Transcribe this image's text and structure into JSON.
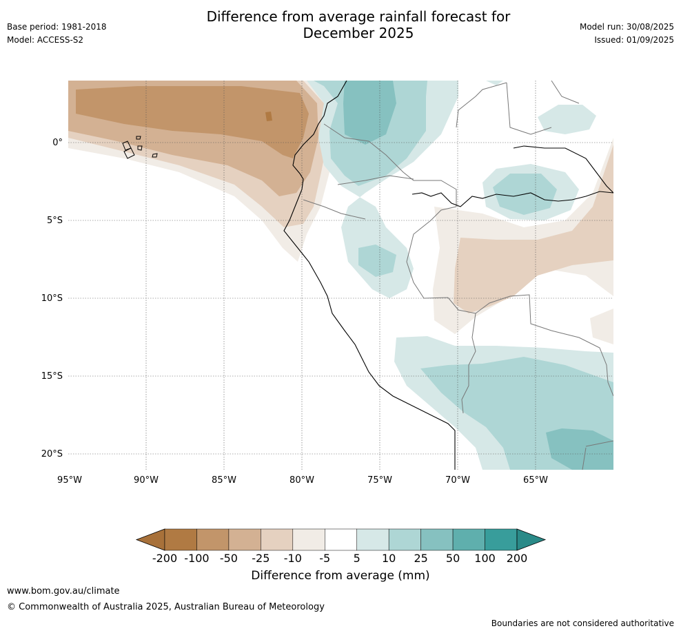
{
  "title": "Difference from average rainfall forecast for\nDecember 2025",
  "meta_left": {
    "base_period": "Base period: 1981-2018",
    "model": "Model: ACCESS-S2"
  },
  "meta_right": {
    "model_run": "Model run: 30/08/2025",
    "issued": "Issued: 01/09/2025"
  },
  "map": {
    "lon_range": [
      -95,
      -60
    ],
    "lat_range": [
      -21,
      4
    ],
    "lon_ticks": [
      {
        "value": -95,
        "label": "95°W"
      },
      {
        "value": -90,
        "label": "90°W"
      },
      {
        "value": -85,
        "label": "85°W"
      },
      {
        "value": -80,
        "label": "80°W"
      },
      {
        "value": -75,
        "label": "75°W"
      },
      {
        "value": -70,
        "label": "70°W"
      },
      {
        "value": -65,
        "label": "65°W"
      }
    ],
    "lat_ticks": [
      {
        "value": 0,
        "label": "0°"
      },
      {
        "value": -5,
        "label": "5°S"
      },
      {
        "value": -10,
        "label": "10°S"
      },
      {
        "value": -15,
        "label": "15°S"
      },
      {
        "value": -20,
        "label": "20°S"
      }
    ],
    "gridlines": true
  },
  "colorbar": {
    "title": "Difference from average (mm)",
    "labels": [
      "-200",
      "-100",
      "-50",
      "-25",
      "-10",
      "-5",
      "5",
      "10",
      "25",
      "50",
      "100",
      "200"
    ],
    "colors": [
      "#a8713a",
      "#b07a43",
      "#c2956a",
      "#d3b193",
      "#e5d1c0",
      "#f1ece6",
      "#ffffff",
      "#d6e8e7",
      "#aed6d5",
      "#86c1c0",
      "#5fafad",
      "#389d9b",
      "#2a8a88"
    ]
  },
  "footer": {
    "url": "www.bom.gov.au/climate",
    "copyright": "© Commonwealth of Australia 2025, Australian Bureau of Meteorology",
    "note": "Boundaries are not considered authoritative"
  }
}
